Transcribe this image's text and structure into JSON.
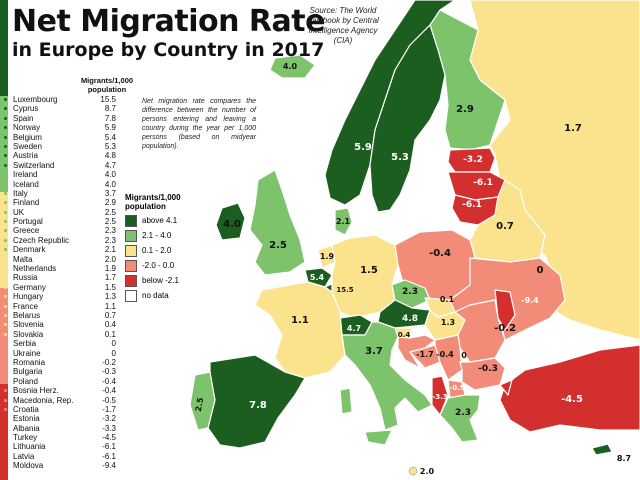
{
  "title": {
    "line1": "Net Migration Rate",
    "line2": "in Europe by Country in 2017"
  },
  "source": "Source: The World Factbook by Central Intelligence Agency (CIA)",
  "table": {
    "header": "Migrants/1,000 population",
    "rows": [
      {
        "country": "Luxembourg",
        "value": "15.5"
      },
      {
        "country": "Cyprus",
        "value": "8.7"
      },
      {
        "country": "Spain",
        "value": "7.8"
      },
      {
        "country": "Norway",
        "value": "5.9"
      },
      {
        "country": "Belgium",
        "value": "5.4"
      },
      {
        "country": "Sweden",
        "value": "5.3"
      },
      {
        "country": "Austria",
        "value": "4.8"
      },
      {
        "country": "Switzerland",
        "value": "4.7"
      },
      {
        "country": "Ireland",
        "value": "4.0"
      },
      {
        "country": "Iceland",
        "value": "4.0"
      },
      {
        "country": "Italy",
        "value": "3.7"
      },
      {
        "country": "Finland",
        "value": "2.9"
      },
      {
        "country": "UK",
        "value": "2.5"
      },
      {
        "country": "Portugal",
        "value": "2.5"
      },
      {
        "country": "Greece",
        "value": "2.3"
      },
      {
        "country": "Czech Republic",
        "value": "2.3"
      },
      {
        "country": "Denmark",
        "value": "2.1"
      },
      {
        "country": "Malta",
        "value": "2.0"
      },
      {
        "country": "Netherlands",
        "value": "1.9"
      },
      {
        "country": "Russia",
        "value": "1.7"
      },
      {
        "country": "Germany",
        "value": "1.5"
      },
      {
        "country": "Hungary",
        "value": "1.3"
      },
      {
        "country": "France",
        "value": "1.1"
      },
      {
        "country": "Belarus",
        "value": "0.7"
      },
      {
        "country": "Slovenia",
        "value": "0.4"
      },
      {
        "country": "Slovakia",
        "value": "0.1"
      },
      {
        "country": "Serbia",
        "value": "0"
      },
      {
        "country": "Ukraine",
        "value": "0"
      },
      {
        "country": "Romania",
        "value": "-0.2"
      },
      {
        "country": "Bulgaria",
        "value": "-0.3"
      },
      {
        "country": "Poland",
        "value": "-0.4"
      },
      {
        "country": "Bosnia Herz.",
        "value": "-0.4"
      },
      {
        "country": "Macedonia, Rep.",
        "value": "-0.5"
      },
      {
        "country": "Croatia",
        "value": "-1.7"
      },
      {
        "country": "Estonia",
        "value": "-3.2"
      },
      {
        "country": "Albania",
        "value": "-3.3"
      },
      {
        "country": "Turkey",
        "value": "-4.5"
      },
      {
        "country": "Lithuania",
        "value": "-6.1"
      },
      {
        "country": "Latvia",
        "value": "-6.1"
      },
      {
        "country": "Moldova",
        "value": "-9.4"
      }
    ]
  },
  "note": "Net migration rate compares the difference between the number of persons entering and leaving a country during the year per 1,000 persons (based on midyear population).",
  "legend": {
    "title": "Migrants/1,000 population",
    "items": [
      {
        "label": "above 4.1",
        "color": "#1b5e20"
      },
      {
        "label": "2.1 - 4.0",
        "color": "#7cc36b"
      },
      {
        "label": "0.1 - 2.0",
        "color": "#fbe38e"
      },
      {
        "label": "-2.0 - 0.0",
        "color": "#f28c78"
      },
      {
        "label": "below -2.1",
        "color": "#d32f2f"
      },
      {
        "label": "no data",
        "color": "#ffffff"
      }
    ]
  },
  "map_labels": {
    "norway": "5.9",
    "sweden": "5.3",
    "finland": "2.9",
    "russia": "1.7",
    "estonia": "-3.2",
    "latvia": "-6.1",
    "lithuania": "-6.1",
    "iceland": "4.0",
    "ireland": "4.0",
    "uk": "2.5",
    "denmark": "2.1",
    "netherlands": "1.9",
    "belgium": "5.4",
    "luxembourg": "15.5",
    "germany": "1.5",
    "poland": "-0.4",
    "belarus": "0.7",
    "ukraine": "0",
    "czech": "2.3",
    "slovakia": "0.1",
    "austria": "4.8",
    "switzerland": "4.7",
    "hungary": "1.3",
    "moldova": "-9.4",
    "romania": "-0.2",
    "slovenia": "0.4",
    "croatia": "-1.7",
    "bosnia": "-0.4",
    "serbia": "0",
    "bulgaria": "-0.3",
    "macedonia": "-0.5",
    "albania": "-3.3",
    "greece": "2.3",
    "turkey": "-4.5",
    "france": "1.1",
    "italy": "3.7",
    "spain": "7.8",
    "portugal": "2.5",
    "malta": "2.0",
    "cyprus": "8.7"
  },
  "colors": {
    "sidebar": [
      "#1b5e20",
      "#7cc36b",
      "#fbe38e",
      "#f28c78",
      "#d32f2f"
    ],
    "sea": "#ffffff",
    "border": "#ffffff"
  }
}
